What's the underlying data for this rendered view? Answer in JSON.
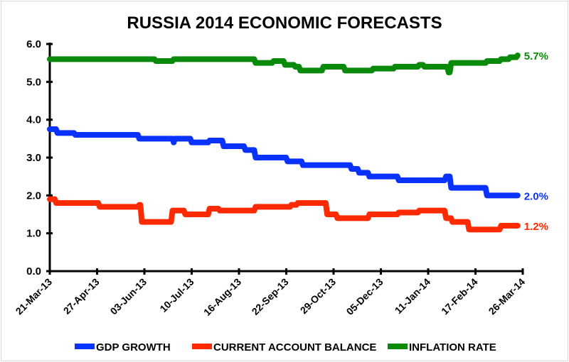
{
  "chart_data": {
    "type": "line",
    "title": "RUSSIA 2014 ECONOMIC FORECASTS",
    "xlabel": "",
    "ylabel": "",
    "ylim": [
      0,
      6
    ],
    "yticks": [
      "0.0",
      "1.0",
      "2.0",
      "3.0",
      "4.0",
      "5.0",
      "6.0"
    ],
    "x_unit": "days since 21-Mar-13",
    "xlim": [
      0,
      370
    ],
    "xticks": [
      "21-Mar-13",
      "27-Apr-13",
      "03-Jun-13",
      "10-Jul-13",
      "16-Aug-13",
      "22-Sep-13",
      "29-Oct-13",
      "05-Dec-13",
      "11-Jan-14",
      "17-Feb-14",
      "26-Mar-14"
    ],
    "grid": false,
    "legend_position": "bottom",
    "series": [
      {
        "name": "GDP GROWTH",
        "color": "#0a32ff",
        "end_label": "2.0%",
        "points": [
          [
            0,
            3.75
          ],
          [
            6,
            3.65
          ],
          [
            20,
            3.6
          ],
          [
            70,
            3.5
          ],
          [
            96,
            3.5
          ],
          [
            97,
            3.4
          ],
          [
            98,
            3.5
          ],
          [
            111,
            3.4
          ],
          [
            125,
            3.45
          ],
          [
            136,
            3.3
          ],
          [
            153,
            3.2
          ],
          [
            161,
            3.0
          ],
          [
            186,
            2.9
          ],
          [
            198,
            2.8
          ],
          [
            236,
            2.7
          ],
          [
            242,
            2.6
          ],
          [
            250,
            2.5
          ],
          [
            273,
            2.4
          ],
          [
            310,
            2.5
          ],
          [
            314,
            2.2
          ],
          [
            342,
            2.0
          ],
          [
            366,
            2.0
          ]
        ]
      },
      {
        "name": "CURRENT ACCOUNT BALANCE",
        "color": "#ff2a00",
        "end_label": "1.2%",
        "points": [
          [
            0,
            1.9
          ],
          [
            5,
            1.8
          ],
          [
            39,
            1.7
          ],
          [
            70,
            1.75
          ],
          [
            72,
            1.3
          ],
          [
            96,
            1.6
          ],
          [
            106,
            1.5
          ],
          [
            125,
            1.65
          ],
          [
            133,
            1.6
          ],
          [
            161,
            1.7
          ],
          [
            189,
            1.75
          ],
          [
            194,
            1.8
          ],
          [
            217,
            1.5
          ],
          [
            225,
            1.4
          ],
          [
            250,
            1.5
          ],
          [
            273,
            1.55
          ],
          [
            289,
            1.6
          ],
          [
            310,
            1.4
          ],
          [
            315,
            1.3
          ],
          [
            328,
            1.1
          ],
          [
            353,
            1.2
          ],
          [
            366,
            1.2
          ]
        ]
      },
      {
        "name": "INFLATION RATE",
        "color": "#0a8a0a",
        "end_label": "5.7%",
        "points": [
          [
            0,
            5.6
          ],
          [
            83,
            5.55
          ],
          [
            97,
            5.6
          ],
          [
            161,
            5.5
          ],
          [
            175,
            5.55
          ],
          [
            184,
            5.45
          ],
          [
            192,
            5.4
          ],
          [
            196,
            5.3
          ],
          [
            214,
            5.4
          ],
          [
            231,
            5.3
          ],
          [
            253,
            5.35
          ],
          [
            270,
            5.4
          ],
          [
            289,
            5.45
          ],
          [
            293,
            5.4
          ],
          [
            309,
            5.4
          ],
          [
            312,
            5.25
          ],
          [
            314,
            5.5
          ],
          [
            342,
            5.55
          ],
          [
            353,
            5.6
          ],
          [
            360,
            5.65
          ],
          [
            366,
            5.7
          ]
        ]
      }
    ]
  }
}
